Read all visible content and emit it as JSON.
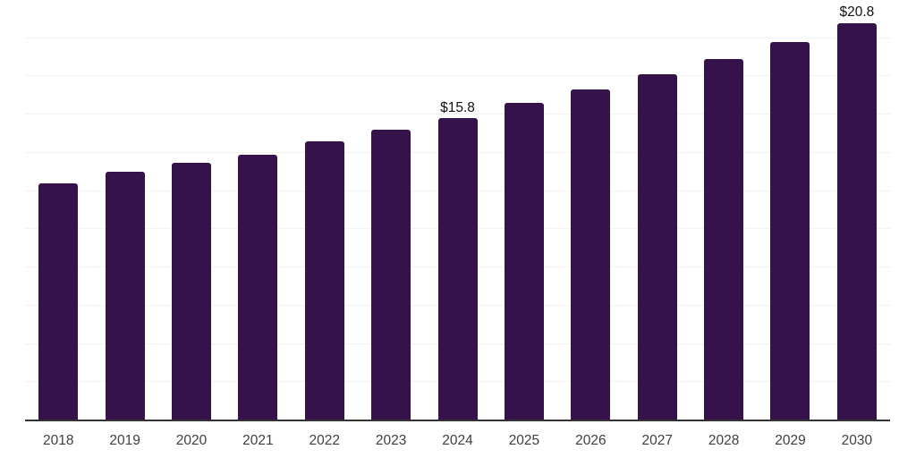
{
  "chart_data": {
    "type": "bar",
    "title": "",
    "xlabel": "",
    "ylabel": "",
    "categories": [
      "2018",
      "2019",
      "2020",
      "2021",
      "2022",
      "2023",
      "2024",
      "2025",
      "2026",
      "2027",
      "2028",
      "2029",
      "2030"
    ],
    "values": [
      12.4,
      13.0,
      13.5,
      13.9,
      14.6,
      15.2,
      15.8,
      16.6,
      17.3,
      18.1,
      18.9,
      19.8,
      20.8
    ],
    "point_labels": [
      "",
      "",
      "",
      "",
      "",
      "",
      "$15.8",
      "",
      "",
      "",
      "",
      "",
      "$20.8"
    ],
    "ylim": [
      0,
      22
    ],
    "gridline_step": 2,
    "grid": true,
    "legend_position": "none",
    "colors": {
      "bar_fill": "#36124B",
      "axis_line": "#333333",
      "tick_label": "#3F3F3F",
      "value_label": "#111111",
      "gridline": "#F2F2F2",
      "background": "#FFFFFF"
    }
  }
}
